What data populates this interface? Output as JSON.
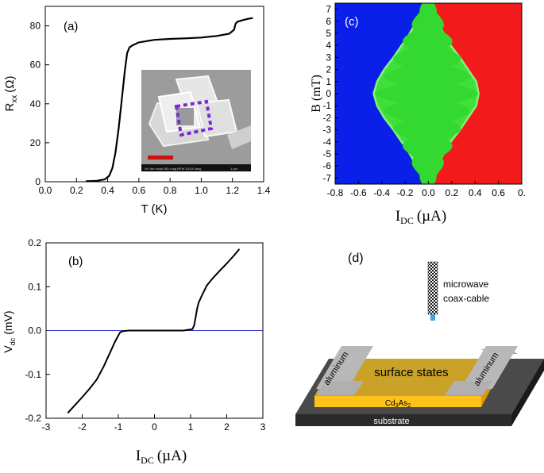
{
  "chart_data": [
    {
      "id": "a",
      "type": "line",
      "panel_label": "(a)",
      "xlabel": "T (K)",
      "ylabel_main": "R",
      "ylabel_sub": "xx",
      "ylabel_unit": "(Ω)",
      "xlim": [
        0.0,
        1.4
      ],
      "ylim": [
        0,
        90
      ],
      "xticks": [
        "0.0",
        "0.2",
        "0.4",
        "0.6",
        "0.8",
        "1.0",
        "1.2",
        "1.4"
      ],
      "yticks": [
        "0",
        "20",
        "40",
        "60",
        "80"
      ],
      "series": [
        {
          "name": "Rxx(T)",
          "x": [
            0.26,
            0.33,
            0.38,
            0.41,
            0.43,
            0.45,
            0.47,
            0.49,
            0.51,
            0.525,
            0.54,
            0.56,
            0.6,
            0.7,
            0.8,
            0.9,
            1.0,
            1.1,
            1.18,
            1.21,
            1.22,
            1.23,
            1.26,
            1.3,
            1.33
          ],
          "y": [
            0.3,
            0.5,
            1.2,
            3,
            7,
            15,
            27,
            42,
            57,
            66,
            69,
            70,
            71.5,
            72.8,
            73.3,
            73.6,
            74.0,
            74.8,
            76,
            78,
            81,
            82,
            82.8,
            83.6,
            84.0
          ]
        }
      ],
      "inset": {
        "scale_bar_color": "#cc1111",
        "outline_color": "#7a2ad0",
        "caption": "1 µm"
      }
    },
    {
      "id": "b",
      "type": "line",
      "panel_label": "(b)",
      "xlabel_main": "I",
      "xlabel_sub": "DC",
      "xlabel_unit": "(µA)",
      "ylabel_main": "V",
      "ylabel_sub": "dc",
      "ylabel_unit": "(mV)",
      "xlim": [
        -3,
        3
      ],
      "ylim": [
        -0.2,
        0.2
      ],
      "xticks": [
        "-3",
        "-2",
        "-1",
        "0",
        "1",
        "2",
        "3"
      ],
      "yticks": [
        "-0.2",
        "-0.1",
        "0.0",
        "0.1",
        "0.2"
      ],
      "zero_line_color": "#3333cc",
      "series": [
        {
          "name": "V(I)",
          "x": [
            -2.4,
            -2.2,
            -2.0,
            -1.8,
            -1.6,
            -1.4,
            -1.3,
            -1.2,
            -1.1,
            -1.0,
            -0.95,
            -0.85,
            -0.7,
            0.0,
            0.8,
            1.05,
            1.1,
            1.15,
            1.18,
            1.22,
            1.3,
            1.45,
            1.6,
            1.8,
            2.0,
            2.2,
            2.35
          ],
          "y": [
            -0.188,
            -0.17,
            -0.152,
            -0.133,
            -0.112,
            -0.081,
            -0.063,
            -0.045,
            -0.027,
            -0.011,
            -0.004,
            -0.001,
            0.0,
            0.0,
            0.0,
            0.003,
            0.012,
            0.035,
            0.05,
            0.063,
            0.078,
            0.103,
            0.118,
            0.136,
            0.153,
            0.171,
            0.186
          ]
        }
      ]
    },
    {
      "id": "c",
      "type": "heatmap",
      "panel_label": "(c)",
      "xlabel_main": "I",
      "xlabel_sub": "DC",
      "xlabel_unit": "(µA)",
      "ylabel": "B (mT)",
      "xlim": [
        -0.8,
        0.8
      ],
      "ylim": [
        -7.5,
        7.5
      ],
      "xticks": [
        "-0.8",
        "-0.6",
        "-0.4",
        "-0.2",
        "0.0",
        "0.2",
        "0.4",
        "0.6",
        "0."
      ],
      "yticks": [
        "7",
        "6",
        "5",
        "4",
        "3",
        "2",
        "1",
        "0",
        "-1",
        "-2",
        "-3",
        "-4",
        "-5",
        "-6",
        "-7"
      ],
      "colors": {
        "negative": "#0a1fe8",
        "superconducting": "#3fe03a",
        "positive": "#f21a1a"
      },
      "critical_current_positive": {
        "B": [
          7.5,
          6.5,
          5.5,
          4.5,
          4.0,
          3.0,
          2.0,
          1.0,
          0.0,
          -1.0,
          -2.0,
          -3.0,
          -4.0,
          -4.5,
          -5.5,
          -6.5,
          -7.5
        ],
        "Ic": [
          0.02,
          0.06,
          0.1,
          0.16,
          0.19,
          0.27,
          0.34,
          0.41,
          0.43,
          0.41,
          0.34,
          0.27,
          0.19,
          0.16,
          0.1,
          0.06,
          0.02
        ]
      },
      "critical_current_negative": {
        "B": [
          7.5,
          6.5,
          5.5,
          4.5,
          4.0,
          3.0,
          2.0,
          1.0,
          0.0,
          -1.0,
          -2.0,
          -3.0,
          -4.0,
          -4.5,
          -5.5,
          -6.5,
          -7.5
        ],
        "Ic": [
          -0.02,
          -0.08,
          -0.13,
          -0.19,
          -0.23,
          -0.3,
          -0.38,
          -0.44,
          -0.47,
          -0.44,
          -0.38,
          -0.3,
          -0.23,
          -0.19,
          -0.13,
          -0.08,
          -0.02
        ]
      }
    }
  ],
  "panel_d": {
    "label": "(d)",
    "microwave_label": "microwave",
    "cable_label": "coax-cable",
    "surface_label": "surface states",
    "lead_left_label": "aluminum",
    "lead_right_label": "aluminum",
    "material_main": "Cd",
    "material_sub1": "3",
    "material_mid": "As",
    "material_sub2": "2",
    "substrate_label": "substrate",
    "colors": {
      "gold": "#c9a227",
      "film": "#ffc21a",
      "lead": "#b0b0b0",
      "substrate": "#3a3a3a"
    }
  }
}
